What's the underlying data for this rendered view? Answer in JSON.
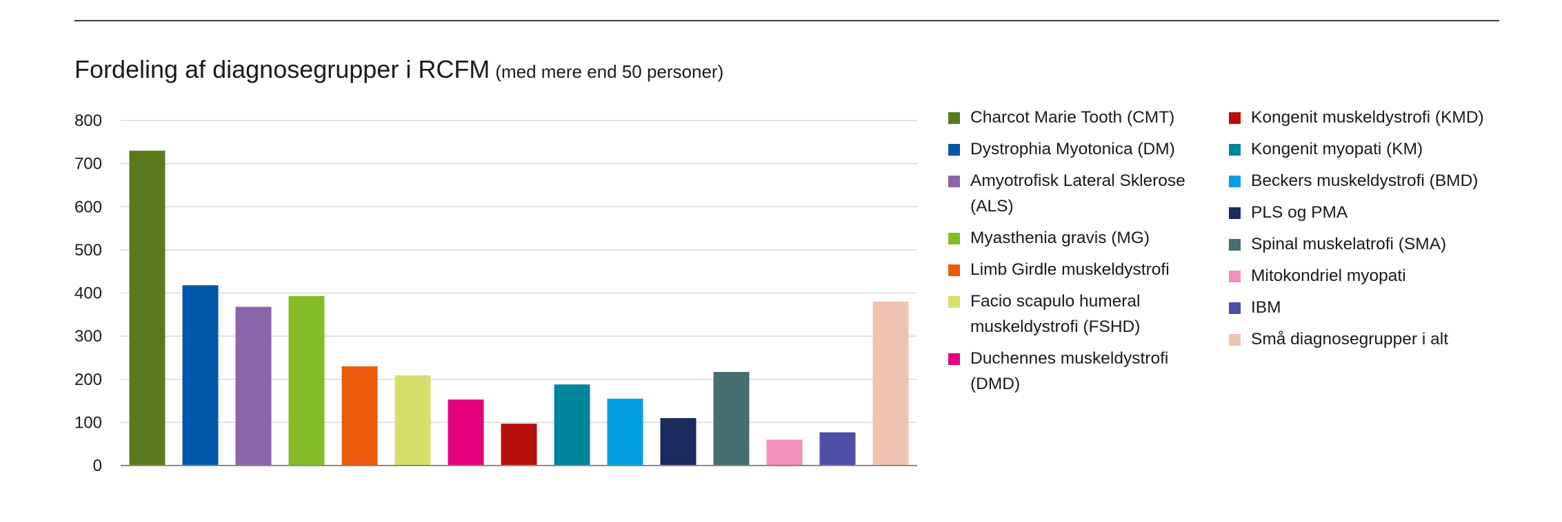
{
  "chart_data": {
    "type": "bar",
    "title": "Fordeling af diagnosegrupper i RCFM",
    "subtitle": "(med mere end 50 personer)",
    "xlabel": "",
    "ylabel": "",
    "ylim": [
      0,
      800
    ],
    "yticks": [
      0,
      100,
      200,
      300,
      400,
      500,
      600,
      700,
      800
    ],
    "grid": true,
    "legend_position": "right",
    "categories": [
      "Charcot Marie Tooth (CMT)",
      "Dystrophia Myotonica (DM)",
      "Amyotrofisk Lateral Sklerose (ALS)",
      "Myasthenia gravis (MG)",
      "Limb Girdle muskeldystrofi",
      "Facio scapulo humeral muskeldystrofi (FSHD)",
      "Duchennes muskeldystrofi (DMD)",
      "Kongenit muskeldystrofi (KMD)",
      "Kongenit myopati (KM)",
      "Beckers muskeldystrofi (BMD)",
      "PLS og PMA",
      "Spinal muskelatrofi (SMA)",
      "Mitokondriel myopati",
      "IBM",
      "Små diagnosegrupper i alt"
    ],
    "values": [
      730,
      418,
      368,
      393,
      230,
      209,
      153,
      97,
      188,
      155,
      110,
      217,
      60,
      77,
      380
    ],
    "colors": [
      "#5b7a1b",
      "#0057a8",
      "#8a65aa",
      "#86bc25",
      "#ea5b0c",
      "#d5df6a",
      "#e6007e",
      "#b80f0a",
      "#00869a",
      "#009fe3",
      "#1b2b5e",
      "#456e70",
      "#f190bb",
      "#4f4ea6",
      "#efc3af"
    ],
    "legend_left": [
      "Charcot Marie Tooth (CMT)",
      "Dystrophia Myotonica (DM)",
      "Amyotrofisk Lateral Sklerose (ALS)",
      "Myasthenia gravis (MG)",
      "Limb Girdle muskeldystrofi",
      "Facio scapulo humeral muskeldystrofi (FSHD)",
      "Duchennes muskeldystrofi (DMD)"
    ],
    "legend_right": [
      "Kongenit muskeldystrofi (KMD)",
      "Kongenit myopati (KM)",
      "Beckers muskeldystrofi (BMD)",
      "PLS og PMA",
      "Spinal muskelatrofi (SMA)",
      "Mitokondriel myopati",
      "IBM",
      "Små diagnosegrupper i alt"
    ]
  }
}
